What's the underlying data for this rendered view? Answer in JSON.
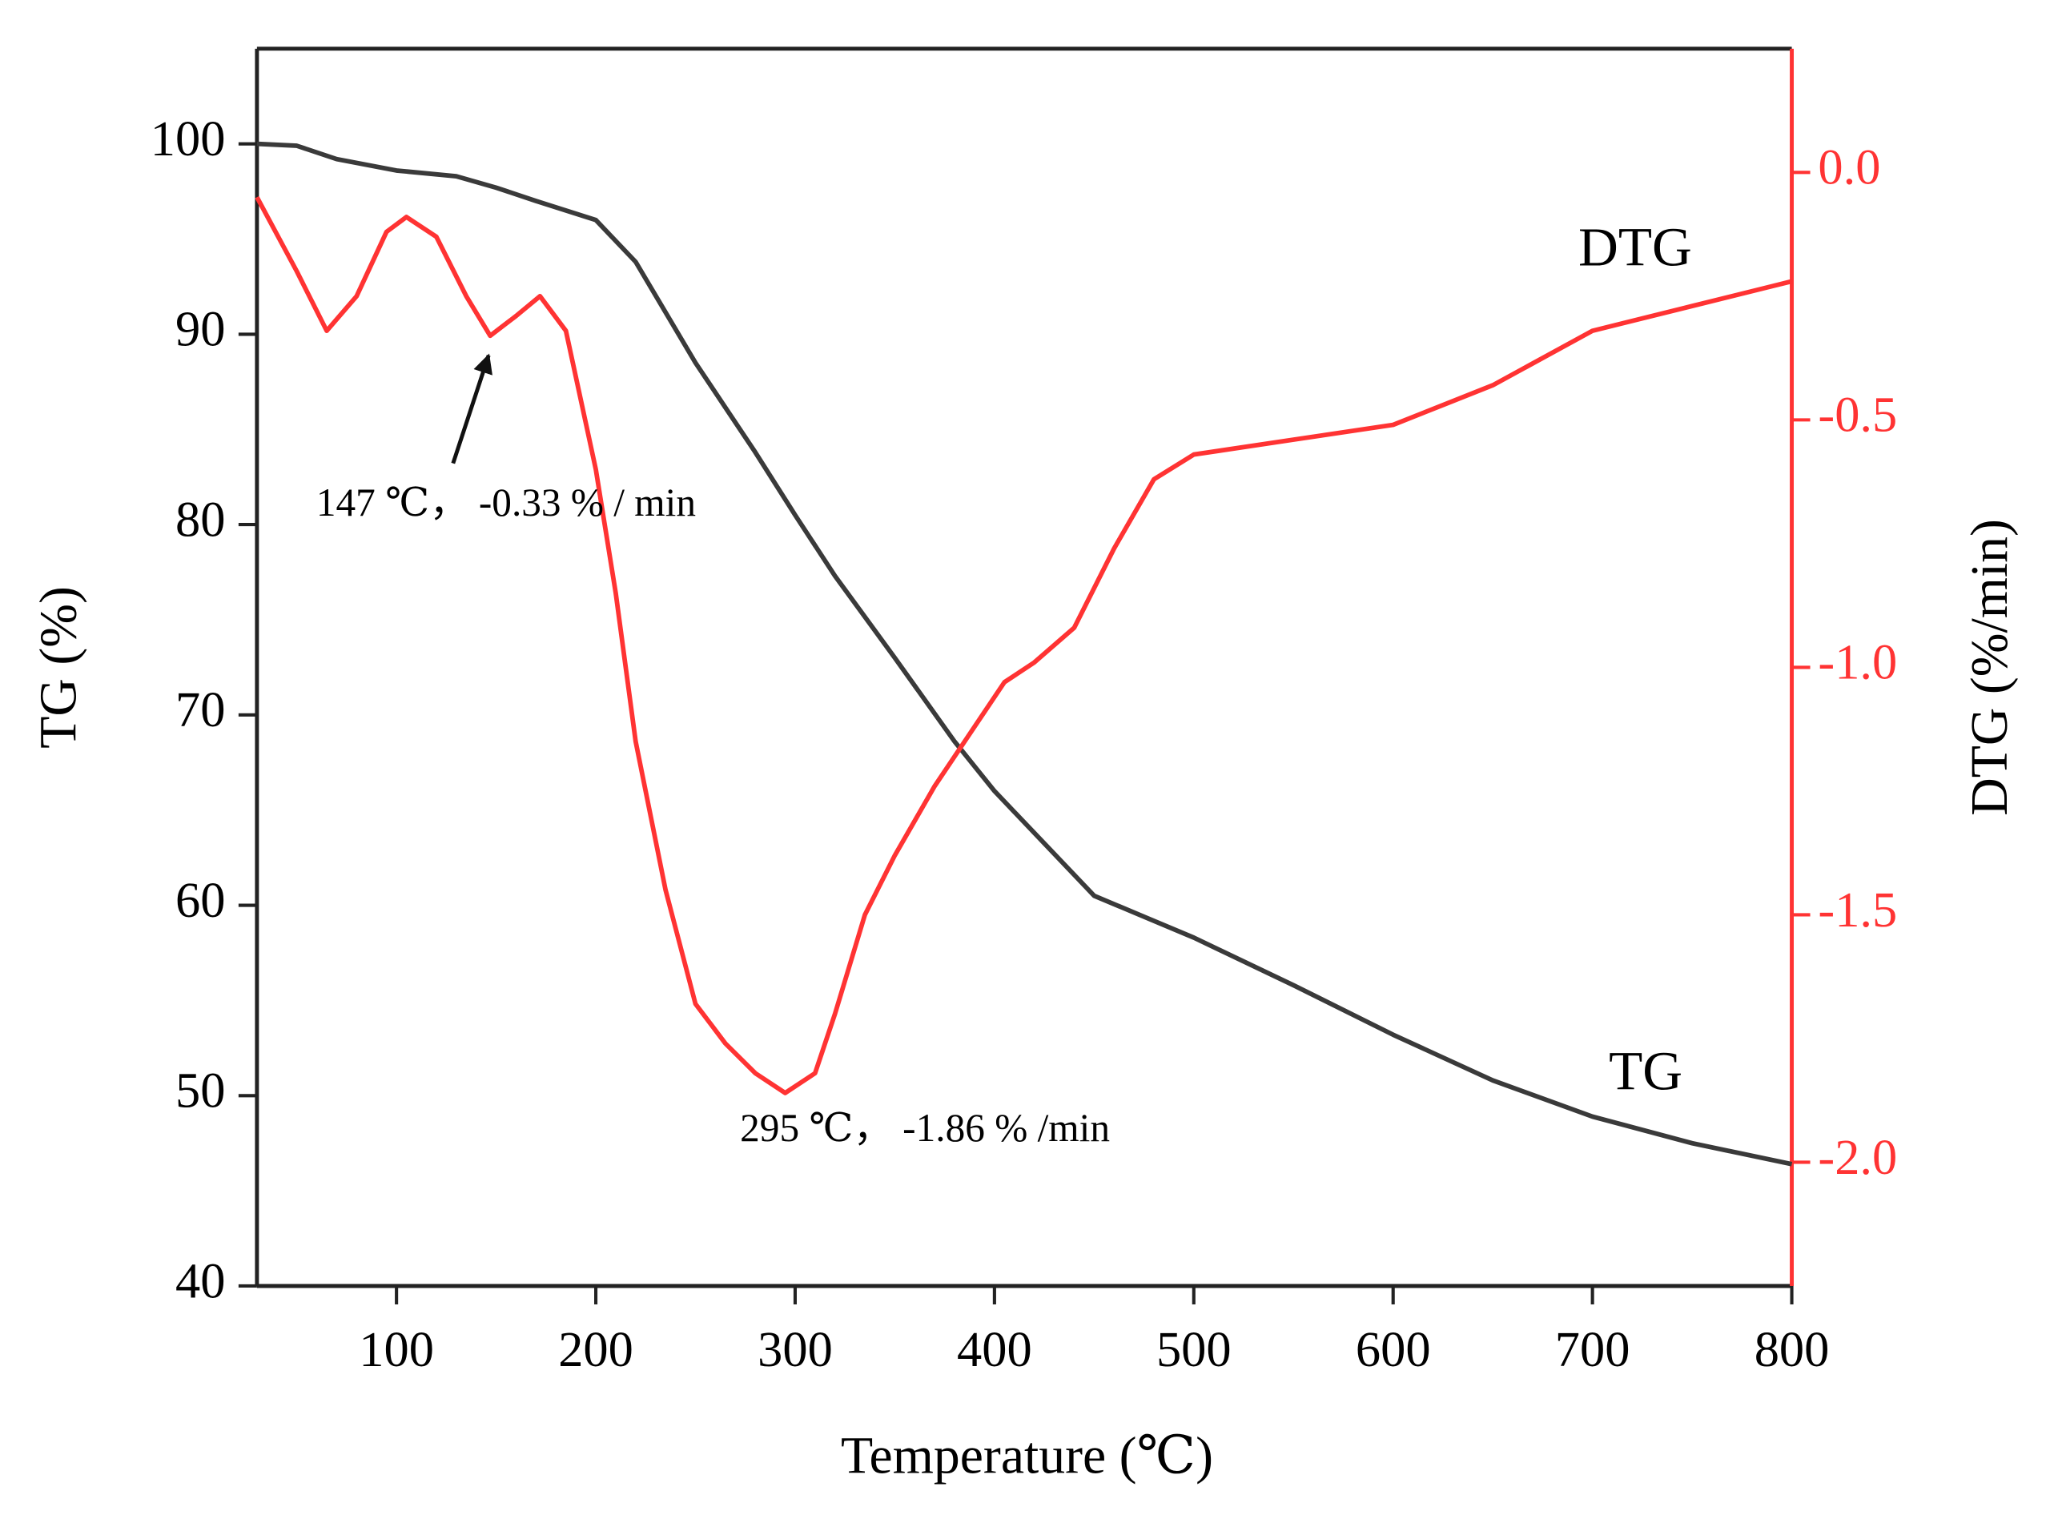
{
  "chart_data": {
    "type": "line",
    "xlabel": "Temperature (℃)",
    "ylabel": "TG (%)",
    "y2label": "DTG (%/min)",
    "xlim": [
      30,
      800
    ],
    "xticks": [
      100,
      200,
      300,
      400,
      500,
      600,
      700,
      800
    ],
    "ylim": [
      40,
      105
    ],
    "yticks": [
      40,
      50,
      60,
      70,
      80,
      90,
      100
    ],
    "y2lim": [
      -2.25,
      0.25
    ],
    "y2ticks": [
      {
        "value": -2,
        "label": "-2.0"
      },
      {
        "value": -1.5,
        "label": "-1.5"
      },
      {
        "value": -1,
        "label": "-1.0"
      },
      {
        "value": -0.5,
        "label": "-0.5"
      },
      {
        "value": 0,
        "label": "0.0"
      }
    ],
    "y2color": "#ff3333",
    "series": [
      {
        "name": "TG",
        "color": "#3a3a3a",
        "x": [
          30,
          50,
          70,
          100,
          130,
          150,
          170,
          200,
          220,
          250,
          280,
          300,
          320,
          350,
          380,
          400,
          450,
          500,
          550,
          600,
          650,
          700,
          750,
          800
        ],
        "values": [
          100,
          99.9,
          99.2,
          98.6,
          98.3,
          97.7,
          97.0,
          96.0,
          93.8,
          88.5,
          83.8,
          80.5,
          77.3,
          73,
          68.6,
          66,
          60.5,
          58.3,
          55.8,
          53.2,
          50.8,
          48.9,
          47.5,
          46.4
        ]
      },
      {
        "name": "DTG",
        "color": "#ff3333",
        "axis": "y2",
        "x": [
          30,
          50,
          65,
          80,
          95,
          105,
          120,
          135,
          147,
          160,
          172,
          185,
          200,
          210,
          220,
          235,
          250,
          265,
          280,
          295,
          310,
          320,
          335,
          350,
          370,
          390,
          405,
          420,
          440,
          460,
          480,
          500,
          550,
          600,
          650,
          700,
          750,
          790,
          800
        ],
        "values": [
          -0.05,
          -0.2,
          -0.32,
          -0.25,
          -0.12,
          -0.09,
          -0.13,
          -0.25,
          -0.33,
          -0.29,
          -0.25,
          -0.32,
          -0.6,
          -0.85,
          -1.15,
          -1.45,
          -1.68,
          -1.76,
          -1.82,
          -1.86,
          -1.82,
          -1.7,
          -1.5,
          -1.38,
          -1.24,
          -1.12,
          -1.03,
          -0.99,
          -0.92,
          -0.76,
          -0.62,
          -0.57,
          -0.54,
          -0.51,
          -0.43,
          -0.32,
          -0.27,
          -0.23,
          -0.22
        ]
      }
    ],
    "annotations": [
      "147 ℃， -0.33 % / min",
      "295 ℃， -1.86 % /min"
    ]
  }
}
